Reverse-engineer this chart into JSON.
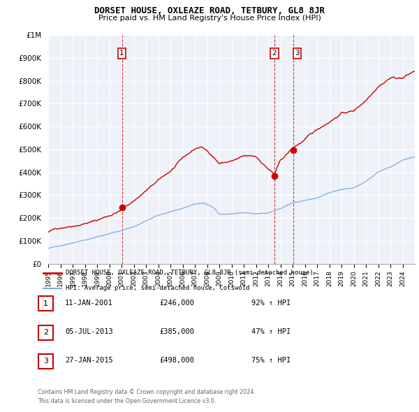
{
  "title": "DORSET HOUSE, OXLEAZE ROAD, TETBURY, GL8 8JR",
  "subtitle": "Price paid vs. HM Land Registry's House Price Index (HPI)",
  "legend_line1": "DORSET HOUSE, OXLEAZE ROAD, TETBURY, GL8 8JR (semi-detached house)",
  "legend_line2": "HPI: Average price, semi-detached house, Cotswold",
  "footer1": "Contains HM Land Registry data © Crown copyright and database right 2024.",
  "footer2": "This data is licensed under the Open Government Licence v3.0.",
  "transactions": [
    {
      "num": 1,
      "date": "11-JAN-2001",
      "price": 246000,
      "pct": "92% ↑ HPI",
      "x": 2001.03
    },
    {
      "num": 2,
      "date": "05-JUL-2013",
      "price": 385000,
      "pct": "47% ↑ HPI",
      "x": 2013.51
    },
    {
      "num": 3,
      "date": "27-JAN-2015",
      "price": 498000,
      "pct": "75% ↑ HPI",
      "x": 2015.07
    }
  ],
  "red_color": "#cc0000",
  "blue_color": "#7aace0",
  "ylim_max": 1000000,
  "xlim_start": 1995,
  "xlim_end": 2025,
  "red_anchors_x": [
    1995,
    1996,
    1997,
    1998,
    1999,
    2000,
    2001.03,
    2002,
    2003,
    2004,
    2005,
    2006,
    2007,
    2007.5,
    2008,
    2008.5,
    2009,
    2010,
    2011,
    2012,
    2013.51,
    2014,
    2015.07,
    2016,
    2017,
    2018,
    2019,
    2020,
    2021,
    2022,
    2023,
    2024,
    2025
  ],
  "red_anchors_y": [
    135000,
    155000,
    170000,
    185000,
    198000,
    220000,
    246000,
    285000,
    330000,
    370000,
    410000,
    460000,
    500000,
    510000,
    490000,
    470000,
    440000,
    450000,
    465000,
    460000,
    385000,
    440000,
    498000,
    530000,
    570000,
    610000,
    650000,
    660000,
    710000,
    780000,
    820000,
    820000,
    850000
  ],
  "blue_anchors_x": [
    1995,
    1996,
    1997,
    1998,
    1999,
    2000,
    2001,
    2002,
    2003,
    2004,
    2005,
    2006,
    2007,
    2007.8,
    2008.5,
    2009,
    2010,
    2011,
    2012,
    2013,
    2014,
    2015,
    2016,
    2017,
    2018,
    2019,
    2020,
    2021,
    2022,
    2023,
    2024,
    2025
  ],
  "blue_anchors_y": [
    70000,
    80000,
    92000,
    105000,
    118000,
    130000,
    143000,
    160000,
    185000,
    210000,
    225000,
    240000,
    258000,
    262000,
    245000,
    215000,
    220000,
    225000,
    220000,
    225000,
    245000,
    268000,
    278000,
    290000,
    310000,
    325000,
    330000,
    360000,
    400000,
    420000,
    450000,
    465000
  ]
}
